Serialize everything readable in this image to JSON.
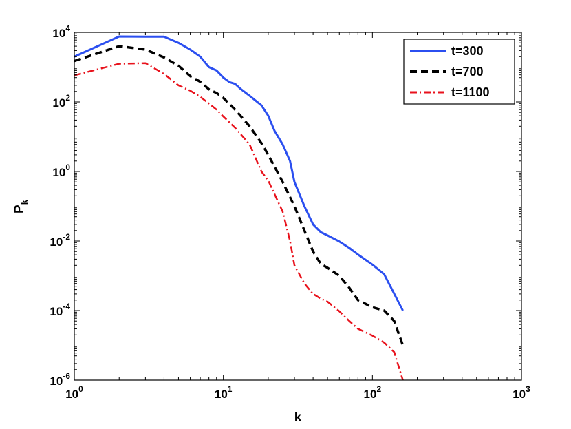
{
  "chart_data": {
    "type": "line",
    "xscale": "log",
    "yscale": "log",
    "xlabel": "k",
    "ylabel": "P",
    "ylabel_sub": "k",
    "xlim": [
      1,
      1000
    ],
    "ylim": [
      1e-06,
      10000
    ],
    "xticks": [
      {
        "value": 1,
        "base": "10",
        "exp": "0"
      },
      {
        "value": 10,
        "base": "10",
        "exp": "1"
      },
      {
        "value": 100,
        "base": "10",
        "exp": "2"
      },
      {
        "value": 1000,
        "base": "10",
        "exp": "3"
      }
    ],
    "yticks": [
      {
        "value": 1e-06,
        "base": "10",
        "exp": "-6"
      },
      {
        "value": 0.0001,
        "base": "10",
        "exp": "-4"
      },
      {
        "value": 0.01,
        "base": "10",
        "exp": "-2"
      },
      {
        "value": 1,
        "base": "10",
        "exp": "0"
      },
      {
        "value": 100,
        "base": "10",
        "exp": "2"
      },
      {
        "value": 10000,
        "base": "10",
        "exp": "4"
      }
    ],
    "legend_position": "top-right",
    "series": [
      {
        "name": "t=300",
        "color": "#2b4ff0",
        "dash": "solid",
        "x": [
          1,
          2,
          3,
          4,
          5,
          6,
          7,
          8,
          9,
          10,
          11,
          12,
          13,
          15,
          18,
          20,
          22,
          25,
          28,
          30,
          35,
          40,
          45,
          50,
          60,
          70,
          80,
          100,
          120,
          160
        ],
        "y": [
          2000,
          7600,
          7500,
          7500,
          5000,
          3200,
          2000,
          1000,
          800,
          500,
          370,
          330,
          240,
          150,
          80,
          40,
          15,
          6,
          2,
          0.5,
          0.1,
          0.03,
          0.018,
          0.0145,
          0.0097,
          0.0063,
          0.0041,
          0.0021,
          0.0011,
          0.0001
        ]
      },
      {
        "name": "t=700",
        "color": "#000000",
        "dash": "dashed",
        "x": [
          1,
          2,
          3,
          4,
          5,
          6,
          7,
          8,
          9,
          10,
          12,
          15,
          18,
          20,
          25,
          30,
          35,
          40,
          45,
          50,
          60,
          70,
          80,
          100,
          120,
          140,
          160
        ],
        "y": [
          1500,
          4000,
          3200,
          1900,
          1100,
          550,
          380,
          230,
          180,
          130,
          60,
          20,
          6.5,
          3,
          0.5,
          0.1,
          0.02,
          0.005,
          0.0022,
          0.0017,
          0.001,
          0.00045,
          0.0002,
          0.000125,
          0.0001,
          5e-05,
          1e-05
        ]
      },
      {
        "name": "t=1100",
        "color": "#e8121c",
        "dash": "dashdot",
        "x": [
          1,
          2,
          3,
          4,
          5,
          6,
          7,
          8,
          9,
          10,
          12,
          15,
          18,
          20,
          25,
          28,
          30,
          35,
          40,
          45,
          50,
          60,
          70,
          80,
          100,
          120,
          140,
          160
        ],
        "y": [
          580,
          1250,
          1300,
          640,
          300,
          210,
          140,
          90,
          60,
          38,
          18,
          6,
          1,
          0.55,
          0.07,
          0.01,
          0.002,
          0.0006,
          0.0003,
          0.00022,
          0.00018,
          9.5e-05,
          5e-05,
          3e-05,
          1.9e-05,
          1.2e-05,
          6.4e-06,
          1e-06
        ]
      }
    ]
  }
}
